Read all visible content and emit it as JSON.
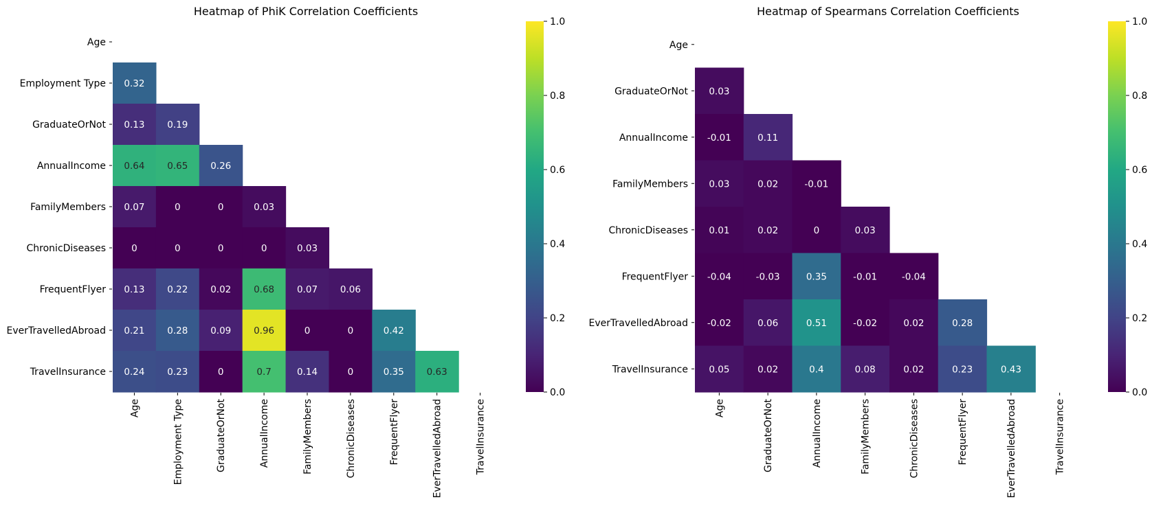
{
  "chart_data": [
    {
      "type": "heatmap",
      "title": "Heatmap of PhiK Correlation Coefficients",
      "row_labels": [
        "Age",
        "Employment Type",
        "GraduateOrNot",
        "AnnualIncome",
        "FamilyMembers",
        "ChronicDiseases",
        "FrequentFlyer",
        "EverTravelledAbroad",
        "TravelInsurance"
      ],
      "col_labels": [
        "Age",
        "Employment Type",
        "GraduateOrNot",
        "AnnualIncome",
        "FamilyMembers",
        "ChronicDiseases",
        "FrequentFlyer",
        "EverTravelledAbroad",
        "TravelInsurance"
      ],
      "mask": "upper-triangle-including-diagonal",
      "values": [
        [],
        [
          "0.32"
        ],
        [
          "0.13",
          "0.19"
        ],
        [
          "0.64",
          "0.65",
          "0.26"
        ],
        [
          "0.07",
          "0",
          "0",
          "0.03"
        ],
        [
          "0",
          "0",
          "0",
          "0",
          "0.03"
        ],
        [
          "0.13",
          "0.22",
          "0.02",
          "0.68",
          "0.07",
          "0.06"
        ],
        [
          "0.21",
          "0.28",
          "0.09",
          "0.96",
          "0",
          "0",
          "0.42"
        ],
        [
          "0.24",
          "0.23",
          "0",
          "0.7",
          "0.14",
          "0",
          "0.35",
          "0.63"
        ]
      ],
      "colorbar": {
        "colormap": "viridis",
        "range": [
          0,
          1
        ],
        "ticks": [
          "0.0",
          "0.2",
          "0.4",
          "0.6",
          "0.8",
          "1.0"
        ]
      }
    },
    {
      "type": "heatmap",
      "title": "Heatmap of Spearmans Correlation Coefficients",
      "row_labels": [
        "Age",
        "GraduateOrNot",
        "AnnualIncome",
        "FamilyMembers",
        "ChronicDiseases",
        "FrequentFlyer",
        "EverTravelledAbroad",
        "TravelInsurance"
      ],
      "col_labels": [
        "Age",
        "GraduateOrNot",
        "AnnualIncome",
        "FamilyMembers",
        "ChronicDiseases",
        "FrequentFlyer",
        "EverTravelledAbroad",
        "TravelInsurance"
      ],
      "mask": "upper-triangle-including-diagonal",
      "values": [
        [],
        [
          "0.03"
        ],
        [
          "-0.01",
          "0.11"
        ],
        [
          "0.03",
          "0.02",
          "-0.01"
        ],
        [
          "0.01",
          "0.02",
          "0",
          "0.03"
        ],
        [
          "-0.04",
          "-0.03",
          "0.35",
          "-0.01",
          "-0.04"
        ],
        [
          "-0.02",
          "0.06",
          "0.51",
          "-0.02",
          "0.02",
          "0.28"
        ],
        [
          "0.05",
          "0.02",
          "0.4",
          "0.08",
          "0.02",
          "0.23",
          "0.43"
        ]
      ],
      "colorbar": {
        "colormap": "viridis",
        "range": [
          0,
          1
        ],
        "ticks": [
          "0.0",
          "0.2",
          "0.4",
          "0.6",
          "0.8",
          "1.0"
        ]
      }
    }
  ]
}
